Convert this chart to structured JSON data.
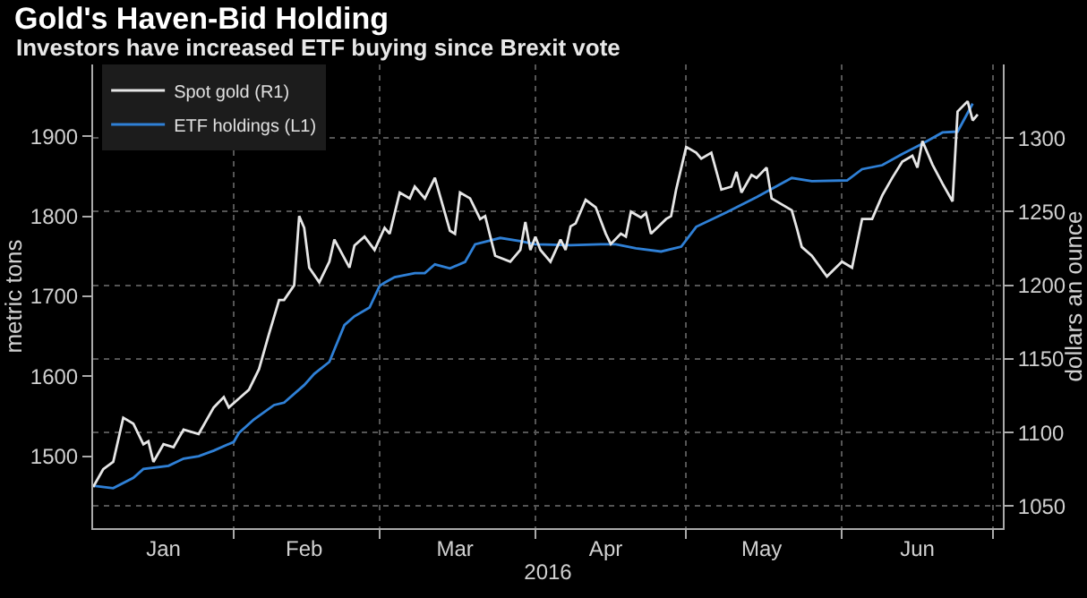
{
  "chart_data": {
    "type": "line",
    "title": "Gold's Haven-Bid Holding",
    "subtitle": "Investors have increased ETF buying since Brexit vote",
    "xlabel": "2016",
    "ylabel": "metric tons",
    "y2label": "dollars an ounce",
    "xlim": [
      "2016-01-04",
      "2016-07-03"
    ],
    "xticks": [
      {
        "value": "2016-01-18",
        "label": "Jan"
      },
      {
        "value": "2016-02-15",
        "label": "Feb"
      },
      {
        "value": "2016-03-16",
        "label": "Mar"
      },
      {
        "value": "2016-04-15",
        "label": "Apr"
      },
      {
        "value": "2016-05-16",
        "label": "May"
      },
      {
        "value": "2016-06-16",
        "label": "Jun"
      },
      {
        "value": "2016-02-01",
        "label": null
      },
      {
        "value": "2016-03-01",
        "label": null
      },
      {
        "value": "2016-04-01",
        "label": null
      },
      {
        "value": "2016-05-01",
        "label": null
      },
      {
        "value": "2016-06-01",
        "label": null
      },
      {
        "value": "2016-07-01",
        "label": null
      }
    ],
    "ylim": [
      1410,
      1990
    ],
    "yticks": [
      1500,
      1600,
      1700,
      1800,
      1900
    ],
    "y2lim": [
      1035,
      1350
    ],
    "y2ticks": [
      1050,
      1100,
      1150,
      1200,
      1250,
      1300
    ],
    "grid": true,
    "legend": "top left",
    "series": [
      {
        "name": "Spot gold (R1)",
        "color": "#e6e6e6",
        "axis": "y2",
        "x": [
          "2016-01-04",
          "2016-01-06",
          "2016-01-08",
          "2016-01-10",
          "2016-01-12",
          "2016-01-14",
          "2016-01-15",
          "2016-01-16",
          "2016-01-18",
          "2016-01-20",
          "2016-01-22",
          "2016-01-25",
          "2016-01-28",
          "2016-01-30",
          "2016-01-31",
          "2016-02-02",
          "2016-02-04",
          "2016-02-06",
          "2016-02-08",
          "2016-02-10",
          "2016-02-11",
          "2016-02-13",
          "2016-02-14",
          "2016-02-15",
          "2016-02-16",
          "2016-02-18",
          "2016-02-20",
          "2016-02-21",
          "2016-02-24",
          "2016-02-25",
          "2016-02-27",
          "2016-02-29",
          "2016-03-02",
          "2016-03-03",
          "2016-03-05",
          "2016-03-07",
          "2016-03-08",
          "2016-03-10",
          "2016-03-12",
          "2016-03-15",
          "2016-03-16",
          "2016-03-17",
          "2016-03-19",
          "2016-03-21",
          "2016-03-22",
          "2016-03-24",
          "2016-03-27",
          "2016-03-29",
          "2016-03-30",
          "2016-03-31",
          "2016-04-01",
          "2016-04-02",
          "2016-04-04",
          "2016-04-06",
          "2016-04-07",
          "2016-04-08",
          "2016-04-09",
          "2016-04-11",
          "2016-04-13",
          "2016-04-15",
          "2016-04-16",
          "2016-04-18",
          "2016-04-19",
          "2016-04-20",
          "2016-04-22",
          "2016-04-23",
          "2016-04-24",
          "2016-04-27",
          "2016-04-28",
          "2016-04-29",
          "2016-05-01",
          "2016-05-03",
          "2016-05-04",
          "2016-05-06",
          "2016-05-08",
          "2016-05-10",
          "2016-05-11",
          "2016-05-12",
          "2016-05-14",
          "2016-05-15",
          "2016-05-17",
          "2016-05-18",
          "2016-05-22",
          "2016-05-23",
          "2016-05-24",
          "2016-05-26",
          "2016-05-29",
          "2016-06-01",
          "2016-06-03",
          "2016-06-05",
          "2016-06-07",
          "2016-06-09",
          "2016-06-11",
          "2016-06-13",
          "2016-06-15",
          "2016-06-16",
          "2016-06-17",
          "2016-06-19",
          "2016-06-21",
          "2016-06-23",
          "2016-06-24",
          "2016-06-26",
          "2016-06-27",
          "2016-06-28"
        ],
        "values": [
          1063,
          1075,
          1080,
          1110,
          1106,
          1092,
          1094,
          1080,
          1092,
          1090,
          1102,
          1099,
          1117,
          1124,
          1117,
          1123,
          1129,
          1143,
          1167,
          1190,
          1190,
          1200,
          1247,
          1239,
          1212,
          1202,
          1216,
          1231,
          1212,
          1227,
          1233,
          1224,
          1239,
          1235,
          1263,
          1259,
          1267,
          1259,
          1273,
          1237,
          1235,
          1263,
          1259,
          1245,
          1247,
          1220,
          1216,
          1224,
          1243,
          1224,
          1233,
          1224,
          1216,
          1231,
          1224,
          1240,
          1242,
          1258,
          1253,
          1235,
          1228,
          1235,
          1233,
          1250,
          1246,
          1249,
          1235,
          1245,
          1247,
          1265,
          1294,
          1290,
          1286,
          1290,
          1265,
          1267,
          1277,
          1263,
          1275,
          1273,
          1280,
          1259,
          1251,
          1239,
          1226,
          1220,
          1206,
          1216,
          1212,
          1245,
          1245,
          1261,
          1273,
          1284,
          1288,
          1280,
          1298,
          1282,
          1269,
          1257,
          1318,
          1325,
          1312,
          1316
        ]
      },
      {
        "name": "ETF holdings (L1)",
        "color": "#2f80d6",
        "x": [
          "2016-01-04",
          "2016-01-08",
          "2016-01-12",
          "2016-01-14",
          "2016-01-19",
          "2016-01-22",
          "2016-01-25",
          "2016-01-28",
          "2016-02-01",
          "2016-02-02",
          "2016-02-05",
          "2016-02-09",
          "2016-02-11",
          "2016-02-15",
          "2016-02-17",
          "2016-02-20",
          "2016-02-23",
          "2016-02-25",
          "2016-02-28",
          "2016-03-01",
          "2016-03-02",
          "2016-03-04",
          "2016-03-08",
          "2016-03-10",
          "2016-03-12",
          "2016-03-15",
          "2016-03-18",
          "2016-03-20",
          "2016-03-25",
          "2016-03-29",
          "2016-04-01",
          "2016-04-08",
          "2016-04-14",
          "2016-04-17",
          "2016-04-21",
          "2016-04-26",
          "2016-04-30",
          "2016-05-03",
          "2016-05-09",
          "2016-05-15",
          "2016-05-22",
          "2016-05-26",
          "2016-06-02",
          "2016-06-05",
          "2016-06-09",
          "2016-06-13",
          "2016-06-17",
          "2016-06-21",
          "2016-06-24",
          "2016-06-27"
        ],
        "values": [
          1463,
          1460,
          1473,
          1484,
          1488,
          1497,
          1500,
          1507,
          1518,
          1529,
          1546,
          1564,
          1567,
          1589,
          1603,
          1618,
          1664,
          1675,
          1686,
          1713,
          1717,
          1724,
          1729,
          1729,
          1740,
          1735,
          1743,
          1765,
          1773,
          1769,
          1765,
          1764,
          1765,
          1765,
          1760,
          1756,
          1762,
          1787,
          1805,
          1824,
          1848,
          1844,
          1845,
          1859,
          1864,
          1878,
          1891,
          1905,
          1906,
          1941
        ]
      }
    ]
  }
}
